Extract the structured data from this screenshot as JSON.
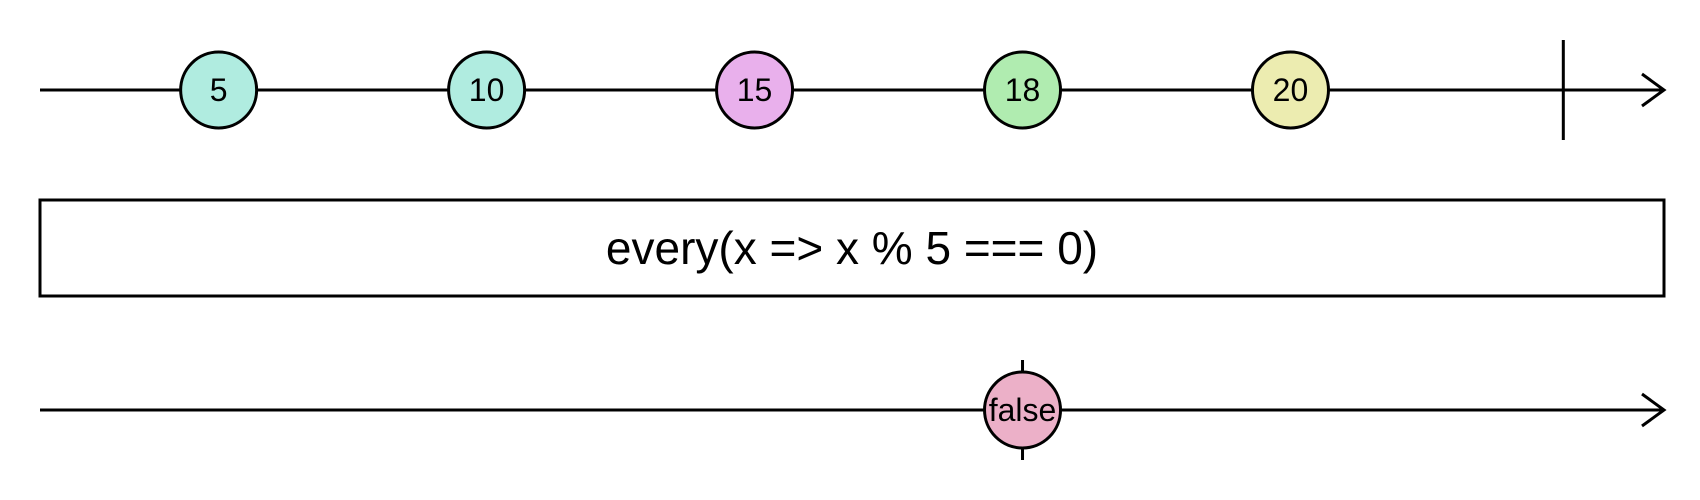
{
  "operator": {
    "label": "every(x => x % 5 === 0)"
  },
  "input": {
    "marbles": [
      {
        "label": "5",
        "t": 0.11,
        "color": "#b0ece0"
      },
      {
        "label": "10",
        "t": 0.275,
        "color": "#b0ece0"
      },
      {
        "label": "15",
        "t": 0.44,
        "color": "#e9b0ec"
      },
      {
        "label": "18",
        "t": 0.605,
        "color": "#b0ecb0"
      },
      {
        "label": "20",
        "t": 0.77,
        "color": "#ececb0"
      }
    ],
    "complete_t": 0.938
  },
  "output": {
    "marbles": [
      {
        "label": "false",
        "t": 0.605,
        "color": "#ecb0c8"
      }
    ],
    "complete_t": 0.605
  }
}
